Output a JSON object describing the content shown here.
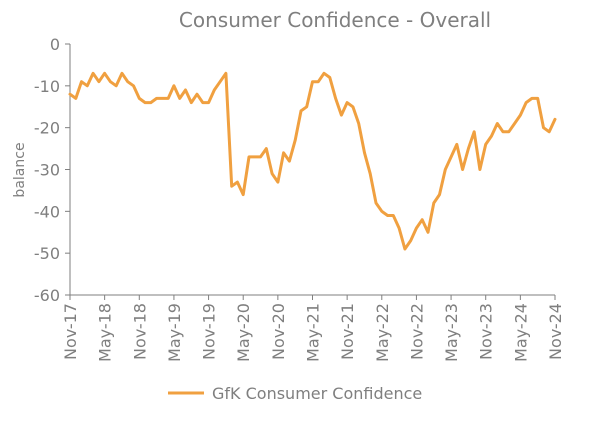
{
  "chart_data": {
    "type": "line",
    "title": "Consumer Confidence - Overall",
    "xlabel": "",
    "ylabel": "balance",
    "ylim": [
      -60,
      0
    ],
    "y_ticks": [
      0,
      -10,
      -20,
      -30,
      -40,
      -50,
      -60
    ],
    "x_tick_labels": [
      "Nov-17",
      "May-18",
      "Nov-18",
      "May-19",
      "Nov-19",
      "May-20",
      "Nov-20",
      "May-21",
      "Nov-21",
      "May-22",
      "Nov-22",
      "May-23",
      "Nov-23",
      "May-24",
      "Nov-24"
    ],
    "grid": false,
    "legend_position": "bottom",
    "colors": {
      "series": "#f0a040",
      "axis": "#7f7f7f"
    },
    "series": [
      {
        "name": "GfK Consumer Confidence",
        "x": [
          "Nov-17",
          "Dec-17",
          "Jan-18",
          "Feb-18",
          "Mar-18",
          "Apr-18",
          "May-18",
          "Jun-18",
          "Jul-18",
          "Aug-18",
          "Sep-18",
          "Oct-18",
          "Nov-18",
          "Dec-18",
          "Jan-19",
          "Feb-19",
          "Mar-19",
          "Apr-19",
          "May-19",
          "Jun-19",
          "Jul-19",
          "Aug-19",
          "Sep-19",
          "Oct-19",
          "Nov-19",
          "Dec-19",
          "Jan-20",
          "Feb-20",
          "Mar-20",
          "Apr-20",
          "May-20",
          "Jun-20",
          "Jul-20",
          "Aug-20",
          "Sep-20",
          "Oct-20",
          "Nov-20",
          "Dec-20",
          "Jan-21",
          "Feb-21",
          "Mar-21",
          "Apr-21",
          "May-21",
          "Jun-21",
          "Jul-21",
          "Aug-21",
          "Sep-21",
          "Oct-21",
          "Nov-21",
          "Dec-21",
          "Jan-22",
          "Feb-22",
          "Mar-22",
          "Apr-22",
          "May-22",
          "Jun-22",
          "Jul-22",
          "Aug-22",
          "Sep-22",
          "Oct-22",
          "Nov-22",
          "Dec-22",
          "Jan-23",
          "Feb-23",
          "Mar-23",
          "Apr-23",
          "May-23",
          "Jun-23",
          "Jul-23",
          "Aug-23",
          "Sep-23",
          "Oct-23",
          "Nov-23",
          "Dec-23",
          "Jan-24",
          "Feb-24",
          "Mar-24",
          "Apr-24",
          "May-24",
          "Jun-24",
          "Jul-24",
          "Aug-24",
          "Sep-24",
          "Oct-24",
          "Nov-24"
        ],
        "values": [
          -12,
          -13,
          -9,
          -10,
          -7,
          -9,
          -7,
          -9,
          -10,
          -7,
          -9,
          -10,
          -13,
          -14,
          -14,
          -13,
          -13,
          -13,
          -10,
          -13,
          -11,
          -14,
          -12,
          -14,
          -14,
          -11,
          -9,
          -7,
          -34,
          -33,
          -36,
          -27,
          -27,
          -27,
          -25,
          -31,
          -33,
          -26,
          -28,
          -23,
          -16,
          -15,
          -9,
          -9,
          -7,
          -8,
          -13,
          -17,
          -14,
          -15,
          -19,
          -26,
          -31,
          -38,
          -40,
          -41,
          -41,
          -44,
          -49,
          -47,
          -44,
          -42,
          -45,
          -38,
          -36,
          -30,
          -27,
          -24,
          -30,
          -25,
          -21,
          -30,
          -24,
          -22,
          -19,
          -21,
          -21,
          -19,
          -17,
          -14,
          -13,
          -13,
          -20,
          -21,
          -18
        ]
      }
    ]
  }
}
